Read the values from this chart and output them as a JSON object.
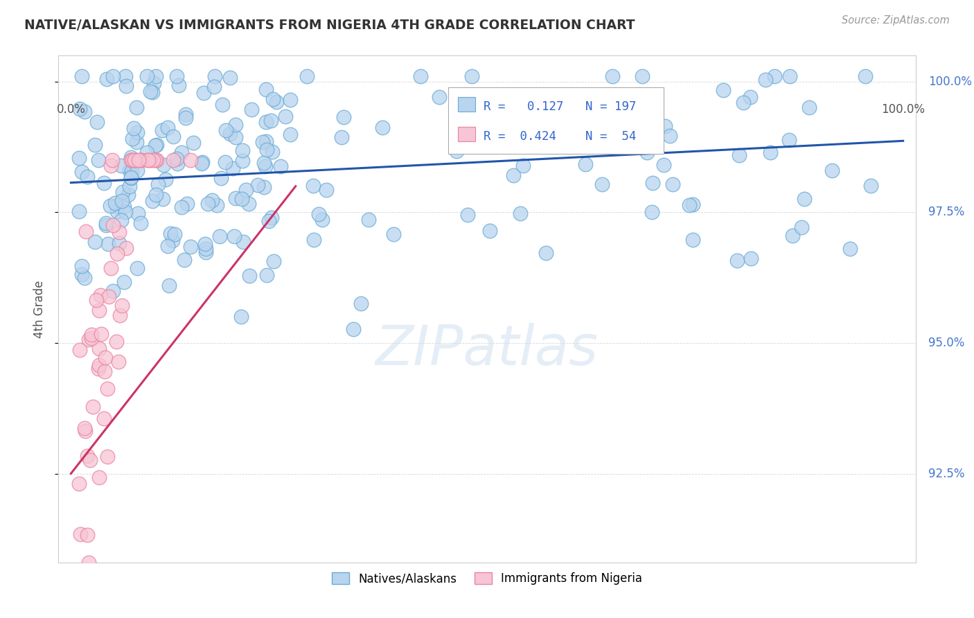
{
  "title": "NATIVE/ALASKAN VS IMMIGRANTS FROM NIGERIA 4TH GRADE CORRELATION CHART",
  "source": "Source: ZipAtlas.com",
  "ylabel": "4th Grade",
  "ylim": [
    0.908,
    1.005
  ],
  "xlim": [
    -0.015,
    1.015
  ],
  "yticks": [
    0.925,
    0.95,
    0.975,
    1.0
  ],
  "ytick_labels": [
    "92.5%",
    "95.0%",
    "97.5%",
    "100.0%"
  ],
  "blue_R": "0.127",
  "blue_N": "197",
  "pink_R": "0.424",
  "pink_N": "54",
  "blue_color": "#b8d4ee",
  "blue_edge": "#6aabd6",
  "pink_color": "#f7c5d5",
  "pink_edge": "#e8849e",
  "blue_line_color": "#2255aa",
  "pink_line_color": "#cc3366",
  "watermark": "ZIPatlas",
  "legend_label_blue": "Natives/Alaskans",
  "legend_label_pink": "Immigrants from Nigeria"
}
